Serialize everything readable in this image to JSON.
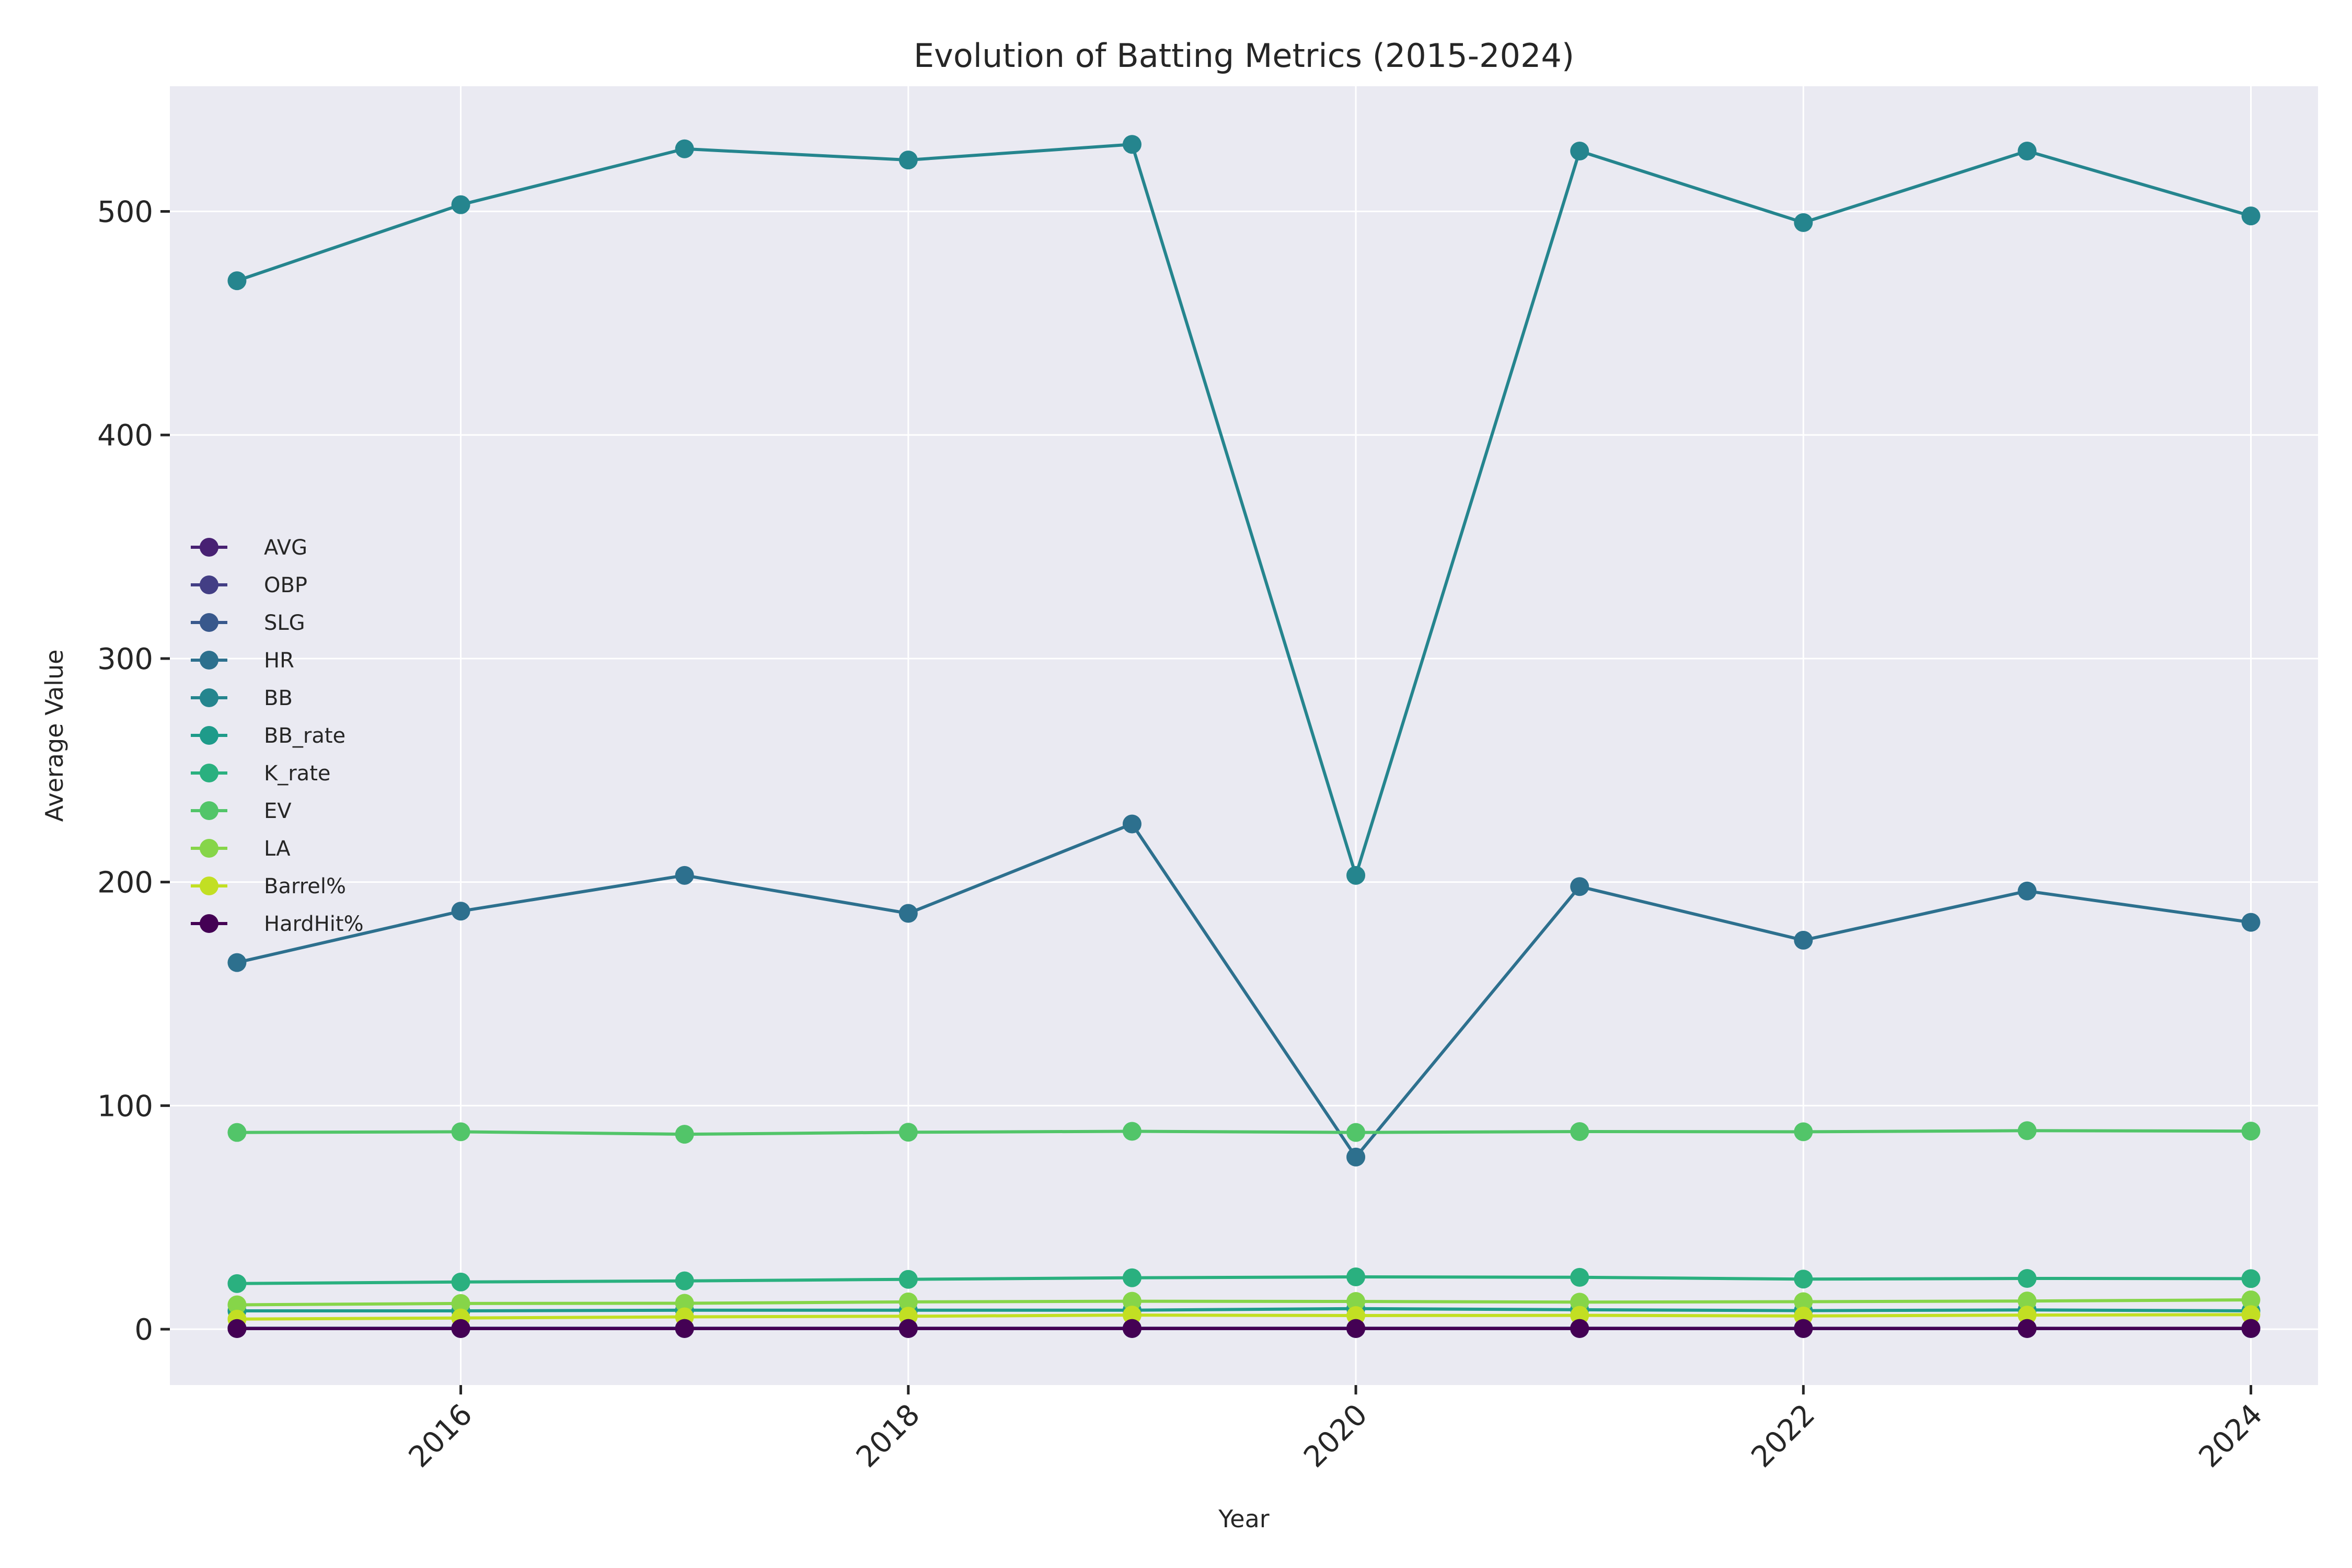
{
  "chart_data": {
    "type": "line",
    "title": "Evolution of Batting Metrics (2015-2024)",
    "xlabel": "Year",
    "ylabel": "Average Value",
    "x": [
      2015,
      2016,
      2017,
      2018,
      2019,
      2020,
      2021,
      2022,
      2023,
      2024
    ],
    "xlim": [
      2014.7,
      2024.3
    ],
    "ylim": [
      -25,
      556
    ],
    "x_ticks": [
      "2016",
      "2018",
      "2020",
      "2022",
      "2024"
    ],
    "y_ticks": [
      "0",
      "100",
      "200",
      "300",
      "400",
      "500"
    ],
    "grid": true,
    "legend_position": "center-left",
    "background": "#eaeaf2",
    "series": [
      {
        "name": "AVG",
        "color": "#482173",
        "values": [
          0.25,
          0.25,
          0.25,
          0.25,
          0.25,
          0.25,
          0.24,
          0.24,
          0.25,
          0.25
        ]
      },
      {
        "name": "OBP",
        "color": "#433e85",
        "values": [
          0.32,
          0.32,
          0.32,
          0.32,
          0.32,
          0.32,
          0.31,
          0.31,
          0.32,
          0.31
        ]
      },
      {
        "name": "SLG",
        "color": "#38588c",
        "values": [
          0.41,
          0.42,
          0.43,
          0.42,
          0.44,
          0.42,
          0.41,
          0.4,
          0.41,
          0.4
        ]
      },
      {
        "name": "HR",
        "color": "#2d708e",
        "values": [
          164,
          187,
          203,
          186,
          226,
          77,
          198,
          174,
          196,
          182
        ]
      },
      {
        "name": "BB",
        "color": "#25858e",
        "values": [
          469,
          503,
          528,
          523,
          530,
          203,
          527,
          495,
          527,
          498
        ]
      },
      {
        "name": "BB_rate",
        "color": "#1e9b8a",
        "values": [
          8.2,
          8.2,
          8.5,
          8.5,
          8.5,
          9.2,
          8.7,
          8.3,
          8.6,
          8.2
        ]
      },
      {
        "name": "K_rate",
        "color": "#2ab07f",
        "values": [
          20.4,
          21.1,
          21.6,
          22.3,
          23.0,
          23.4,
          23.2,
          22.4,
          22.7,
          22.6
        ]
      },
      {
        "name": "EV",
        "color": "#52c569",
        "values": [
          88.0,
          88.3,
          87.2,
          88.1,
          88.5,
          88.0,
          88.4,
          88.3,
          88.8,
          88.6
        ]
      },
      {
        "name": "LA",
        "color": "#86d549",
        "values": [
          10.9,
          11.5,
          11.6,
          12.2,
          12.5,
          12.4,
          12.1,
          12.3,
          12.6,
          13.1
        ]
      },
      {
        "name": "Barrel%",
        "color": "#c2df23",
        "values": [
          4.5,
          5.0,
          5.5,
          5.8,
          6.3,
          6.1,
          6.2,
          5.9,
          6.3,
          6.5
        ]
      },
      {
        "name": "HardHit%",
        "color": "#440154",
        "values": [
          0.3,
          0.32,
          0.33,
          0.34,
          0.35,
          0.35,
          0.34,
          0.34,
          0.35,
          0.36
        ]
      }
    ]
  }
}
